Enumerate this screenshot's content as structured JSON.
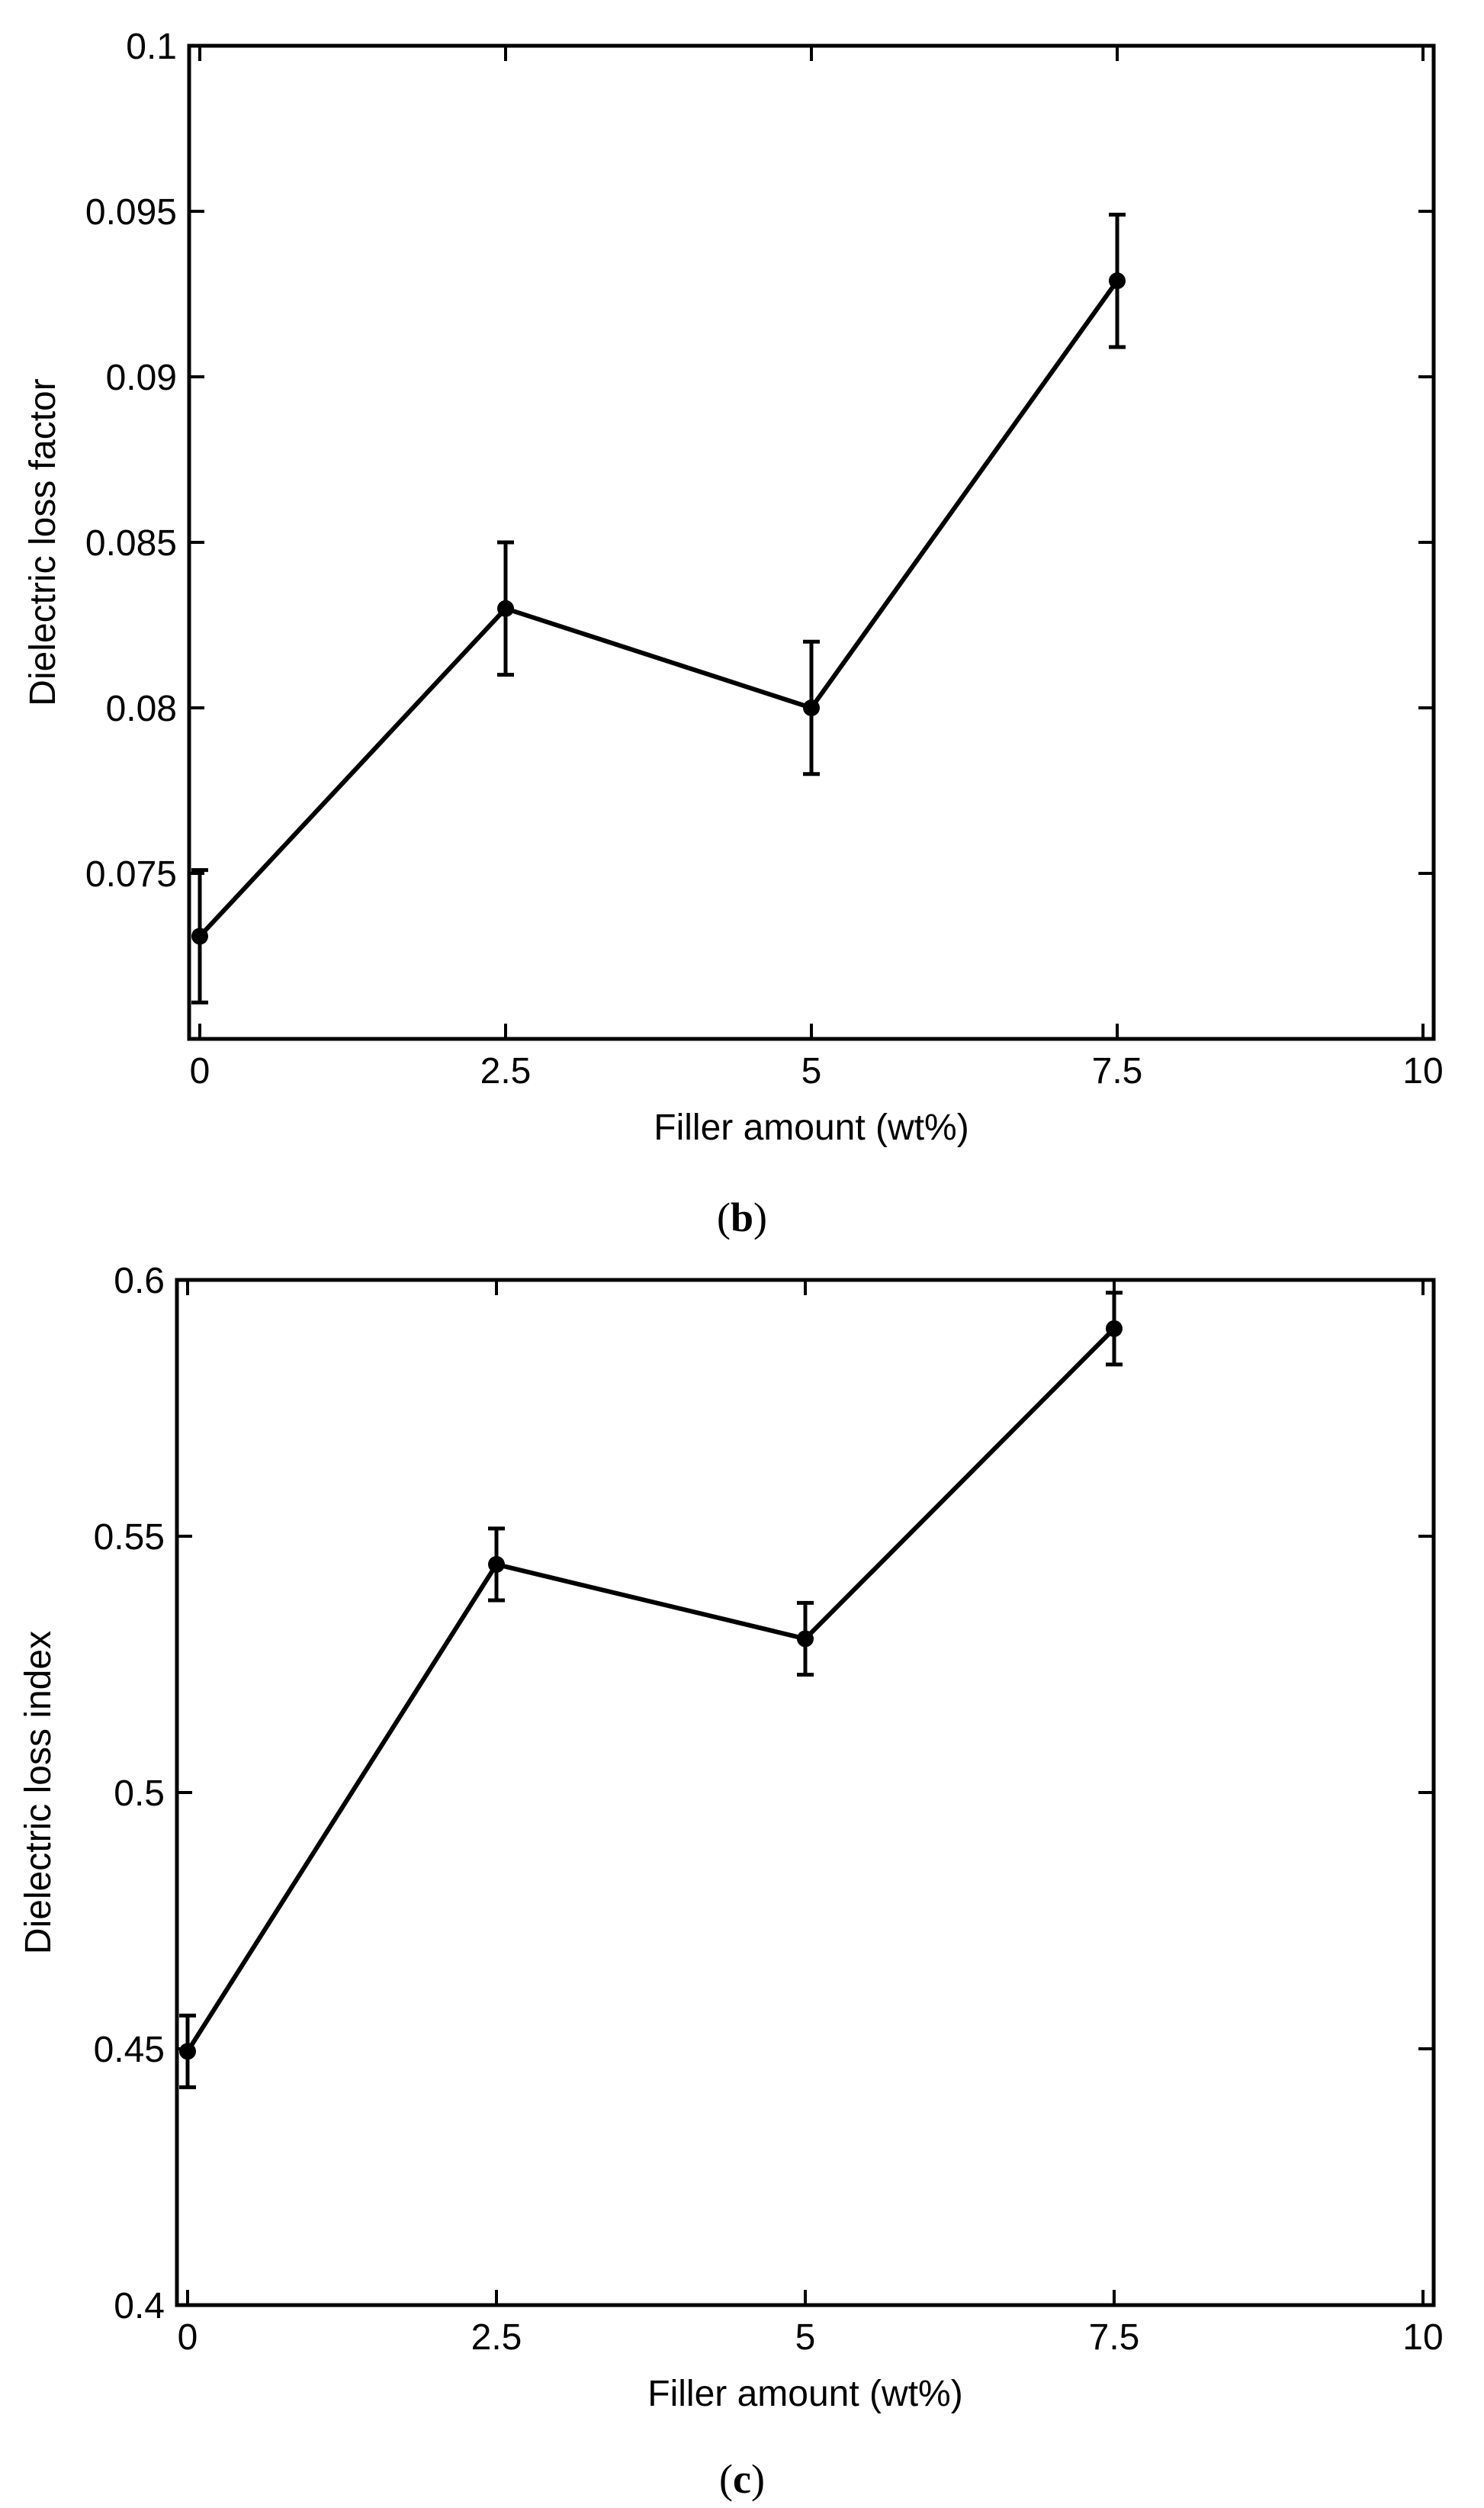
{
  "chart_data": [
    {
      "type": "line",
      "panel_label": "b",
      "title": "",
      "xlabel": "Filler amount (wt%)",
      "ylabel": "Dielectric loss factor",
      "xlim": [
        0,
        10
      ],
      "ylim": [
        0.07,
        0.1
      ],
      "xticks": [
        0,
        2.5,
        5,
        7.5,
        10
      ],
      "xtick_labels": [
        "0",
        "2.5",
        "5",
        "7.5",
        "10"
      ],
      "yticks": [
        0.075,
        0.08,
        0.085,
        0.09,
        0.095,
        0.1
      ],
      "ytick_labels": [
        "0.075",
        "0.08",
        "0.085",
        "0.09",
        "0.095",
        "0.1"
      ],
      "grid": false,
      "series": [
        {
          "name": "Dielectric loss factor",
          "x": [
            0,
            2.5,
            5,
            7.5
          ],
          "values": [
            0.0731,
            0.083,
            0.08,
            0.0929
          ],
          "errors": [
            0.002,
            0.002,
            0.002,
            0.002
          ]
        }
      ]
    },
    {
      "type": "line",
      "panel_label": "c",
      "title": "",
      "xlabel": "Filler amount (wt%)",
      "ylabel": "Dielectric loss index",
      "xlim": [
        0,
        10
      ],
      "ylim": [
        0.4,
        0.6
      ],
      "xticks": [
        0,
        2.5,
        5,
        7.5,
        10
      ],
      "xtick_labels": [
        "0",
        "2.5",
        "5",
        "7.5",
        "10"
      ],
      "yticks": [
        0.4,
        0.45,
        0.5,
        0.55,
        0.6
      ],
      "ytick_labels": [
        "0.4",
        "0.45",
        "0.5",
        "0.55",
        "0.6"
      ],
      "grid": false,
      "series": [
        {
          "name": "Dielectric loss index",
          "x": [
            0,
            2.5,
            5,
            7.5
          ],
          "values": [
            0.4495,
            0.5445,
            0.53,
            0.5905
          ],
          "errors": [
            0.007,
            0.007,
            0.007,
            0.007
          ]
        }
      ]
    }
  ],
  "colors": {
    "line": "#000000",
    "axes": "#000000",
    "background": "#ffffff"
  }
}
